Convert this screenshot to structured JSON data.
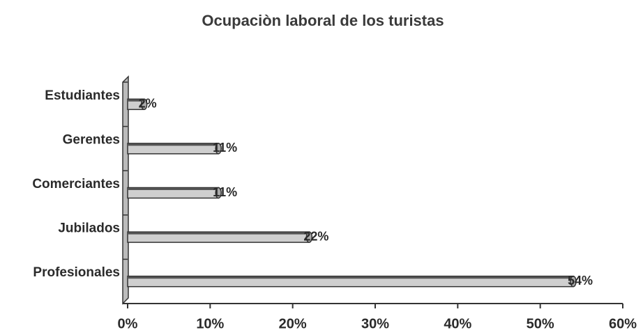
{
  "chart_data": {
    "type": "hbar",
    "title": "Ocupaciòn laboral de los turistas",
    "categories": [
      "Estudiantes",
      "Gerentes",
      "Comerciantes",
      "Jubilados",
      "Profesionales"
    ],
    "values": [
      2,
      11,
      11,
      22,
      54
    ],
    "value_labels": [
      "2%",
      "11%",
      "11%",
      "22%",
      "54%"
    ],
    "color": "#cfcfcf",
    "xlim": [
      0,
      60
    ],
    "xticks": [
      {
        "value": 0,
        "label": "0%"
      },
      {
        "value": 10,
        "label": "10%"
      },
      {
        "value": 20,
        "label": "20%"
      },
      {
        "value": 30,
        "label": "30%"
      },
      {
        "value": 40,
        "label": "40%"
      },
      {
        "value": 50,
        "label": "50%"
      },
      {
        "value": 60,
        "label": "60%"
      }
    ]
  }
}
